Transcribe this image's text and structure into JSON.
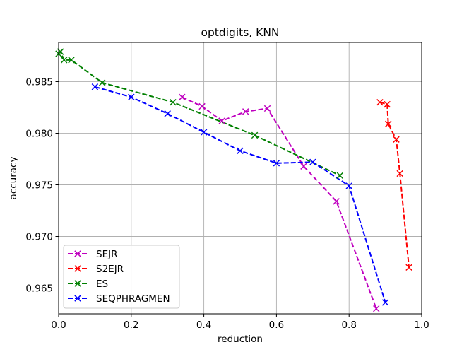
{
  "chart_data": {
    "type": "line",
    "title": "optdigits, KNN",
    "xlabel": "reduction",
    "ylabel": "accuracy",
    "xlim": [
      0.0,
      1.0
    ],
    "ylim": [
      0.9625,
      0.9888
    ],
    "xticks": [
      0.0,
      0.2,
      0.4,
      0.6,
      0.8,
      1.0
    ],
    "xtick_labels": [
      "0.0",
      "0.2",
      "0.4",
      "0.6",
      "0.8",
      "1.0"
    ],
    "yticks": [
      0.965,
      0.97,
      0.975,
      0.98,
      0.985
    ],
    "ytick_labels": [
      "0.965",
      "0.970",
      "0.975",
      "0.980",
      "0.985"
    ],
    "grid": true,
    "legend_position": "lower-left",
    "series": [
      {
        "name": "SEJR",
        "color": "#bf00bf",
        "marker": "x",
        "linestyle": "dashed",
        "x": [
          0.34,
          0.395,
          0.45,
          0.515,
          0.575,
          0.675,
          0.765,
          0.875
        ],
        "y": [
          0.9835,
          0.9826,
          0.9812,
          0.9821,
          0.9824,
          0.9768,
          0.9734,
          0.963
        ]
      },
      {
        "name": "S2EJR",
        "color": "#ff0000",
        "marker": "x",
        "linestyle": "dashed",
        "x": [
          0.885,
          0.905,
          0.908,
          0.93,
          0.94,
          0.965
        ],
        "y": [
          0.983,
          0.9828,
          0.9809,
          0.9794,
          0.9761,
          0.967
        ]
      },
      {
        "name": "ES",
        "color": "#008000",
        "marker": "x",
        "linestyle": "dashed",
        "x": [
          0.0,
          0.005,
          0.015,
          0.035,
          0.12,
          0.315,
          0.54,
          0.775
        ],
        "y": [
          0.9877,
          0.9879,
          0.9871,
          0.9871,
          0.9849,
          0.983,
          0.9798,
          0.9759
        ]
      },
      {
        "name": "SEQPHRAGMEN",
        "color": "#0000ff",
        "marker": "x",
        "linestyle": "dashed",
        "x": [
          0.1,
          0.2,
          0.3,
          0.4,
          0.5,
          0.6,
          0.7,
          0.8,
          0.9
        ],
        "y": [
          0.9845,
          0.9835,
          0.9819,
          0.9801,
          0.9783,
          0.9771,
          0.9772,
          0.9749,
          0.9636
        ]
      }
    ]
  }
}
